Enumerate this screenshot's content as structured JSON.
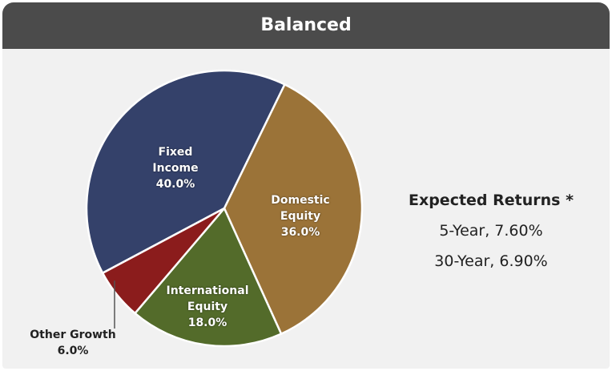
{
  "chart_data": {
    "type": "pie",
    "title": "Balanced",
    "categories": [
      "Fixed Income",
      "Domestic Equity",
      "International Equity",
      "Other Growth"
    ],
    "values": [
      40.0,
      36.0,
      18.0,
      6.0
    ],
    "value_labels": [
      "40.0%",
      "36.0%",
      "18.0%",
      "6.0%"
    ],
    "colors": [
      "#34416a",
      "#9b7338",
      "#536b2a",
      "#8b1c1c"
    ],
    "annotations": {
      "heading": "Expected Returns *",
      "lines": [
        "5-Year, 7.60%",
        "30-Year, 6.90%"
      ]
    }
  }
}
